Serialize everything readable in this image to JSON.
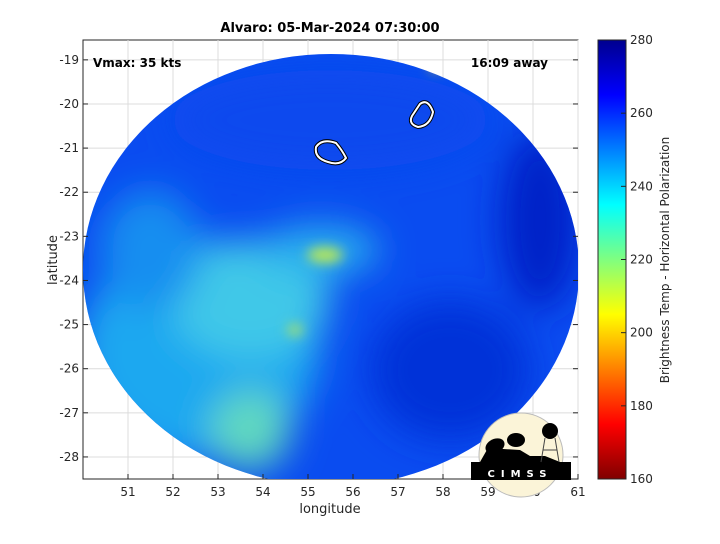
{
  "chart_data": {
    "type": "heatmap",
    "title": "Alvaro: 05-Mar-2024 07:30:00",
    "xlabel": "longitude",
    "ylabel": "latitude",
    "xlim": [
      50,
      61
    ],
    "ylim": [
      -28.5,
      -18.55
    ],
    "xticks": [
      "51",
      "52",
      "53",
      "54",
      "55",
      "56",
      "57",
      "58",
      "59",
      "60",
      "61"
    ],
    "yticks": [
      "-19",
      "-20",
      "-21",
      "-22",
      "-23",
      "-24",
      "-25",
      "-26",
      "-27",
      "-28"
    ],
    "grid": true,
    "annotations": {
      "left": "Vmax: 35 kts",
      "right": "16:09 away"
    },
    "colorbar": {
      "label": "Brightness Temp - Horizontal Polarization",
      "range": [
        160,
        280
      ],
      "ticks": [
        "160",
        "180",
        "200",
        "220",
        "240",
        "260",
        "280"
      ],
      "colormap": "jet"
    },
    "contours": [
      {
        "lon": 55.6,
        "lat": -21.1
      },
      {
        "lon": 57.7,
        "lat": -20.3
      }
    ]
  },
  "logo": {
    "text": "CIMSS"
  }
}
